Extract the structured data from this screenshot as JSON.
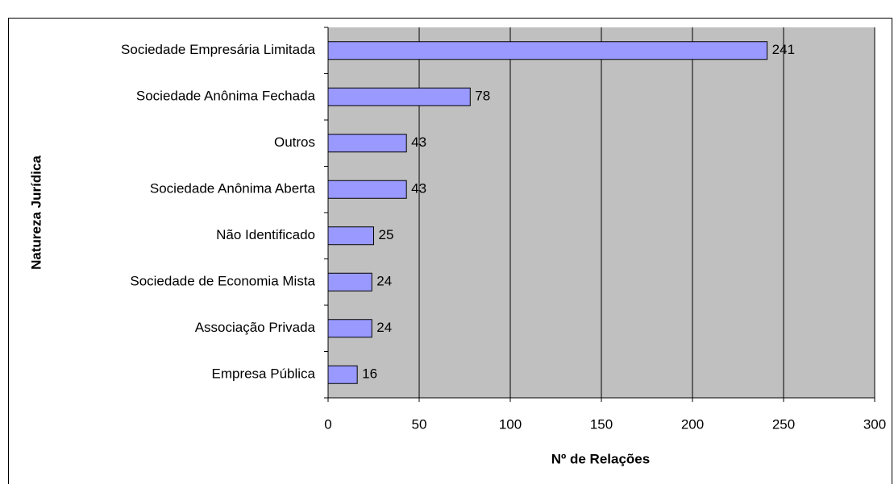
{
  "chart_data": {
    "type": "bar",
    "orientation": "horizontal",
    "categories": [
      "Sociedade Empresária Limitada",
      "Sociedade Anônima Fechada",
      "Outros",
      "Sociedade Anônima Aberta",
      "Não Identificado",
      "Sociedade de Economia Mista",
      "Associação Privada",
      "Empresa Pública"
    ],
    "values": [
      241,
      78,
      43,
      43,
      25,
      24,
      24,
      16
    ],
    "color": "#9999ff",
    "xlabel": "Nº de Relações",
    "ylabel": "Natureza Jurídica",
    "xlim": [
      0,
      300
    ],
    "xticks": [
      0,
      50,
      100,
      150,
      200,
      250,
      300
    ],
    "grid": true
  }
}
